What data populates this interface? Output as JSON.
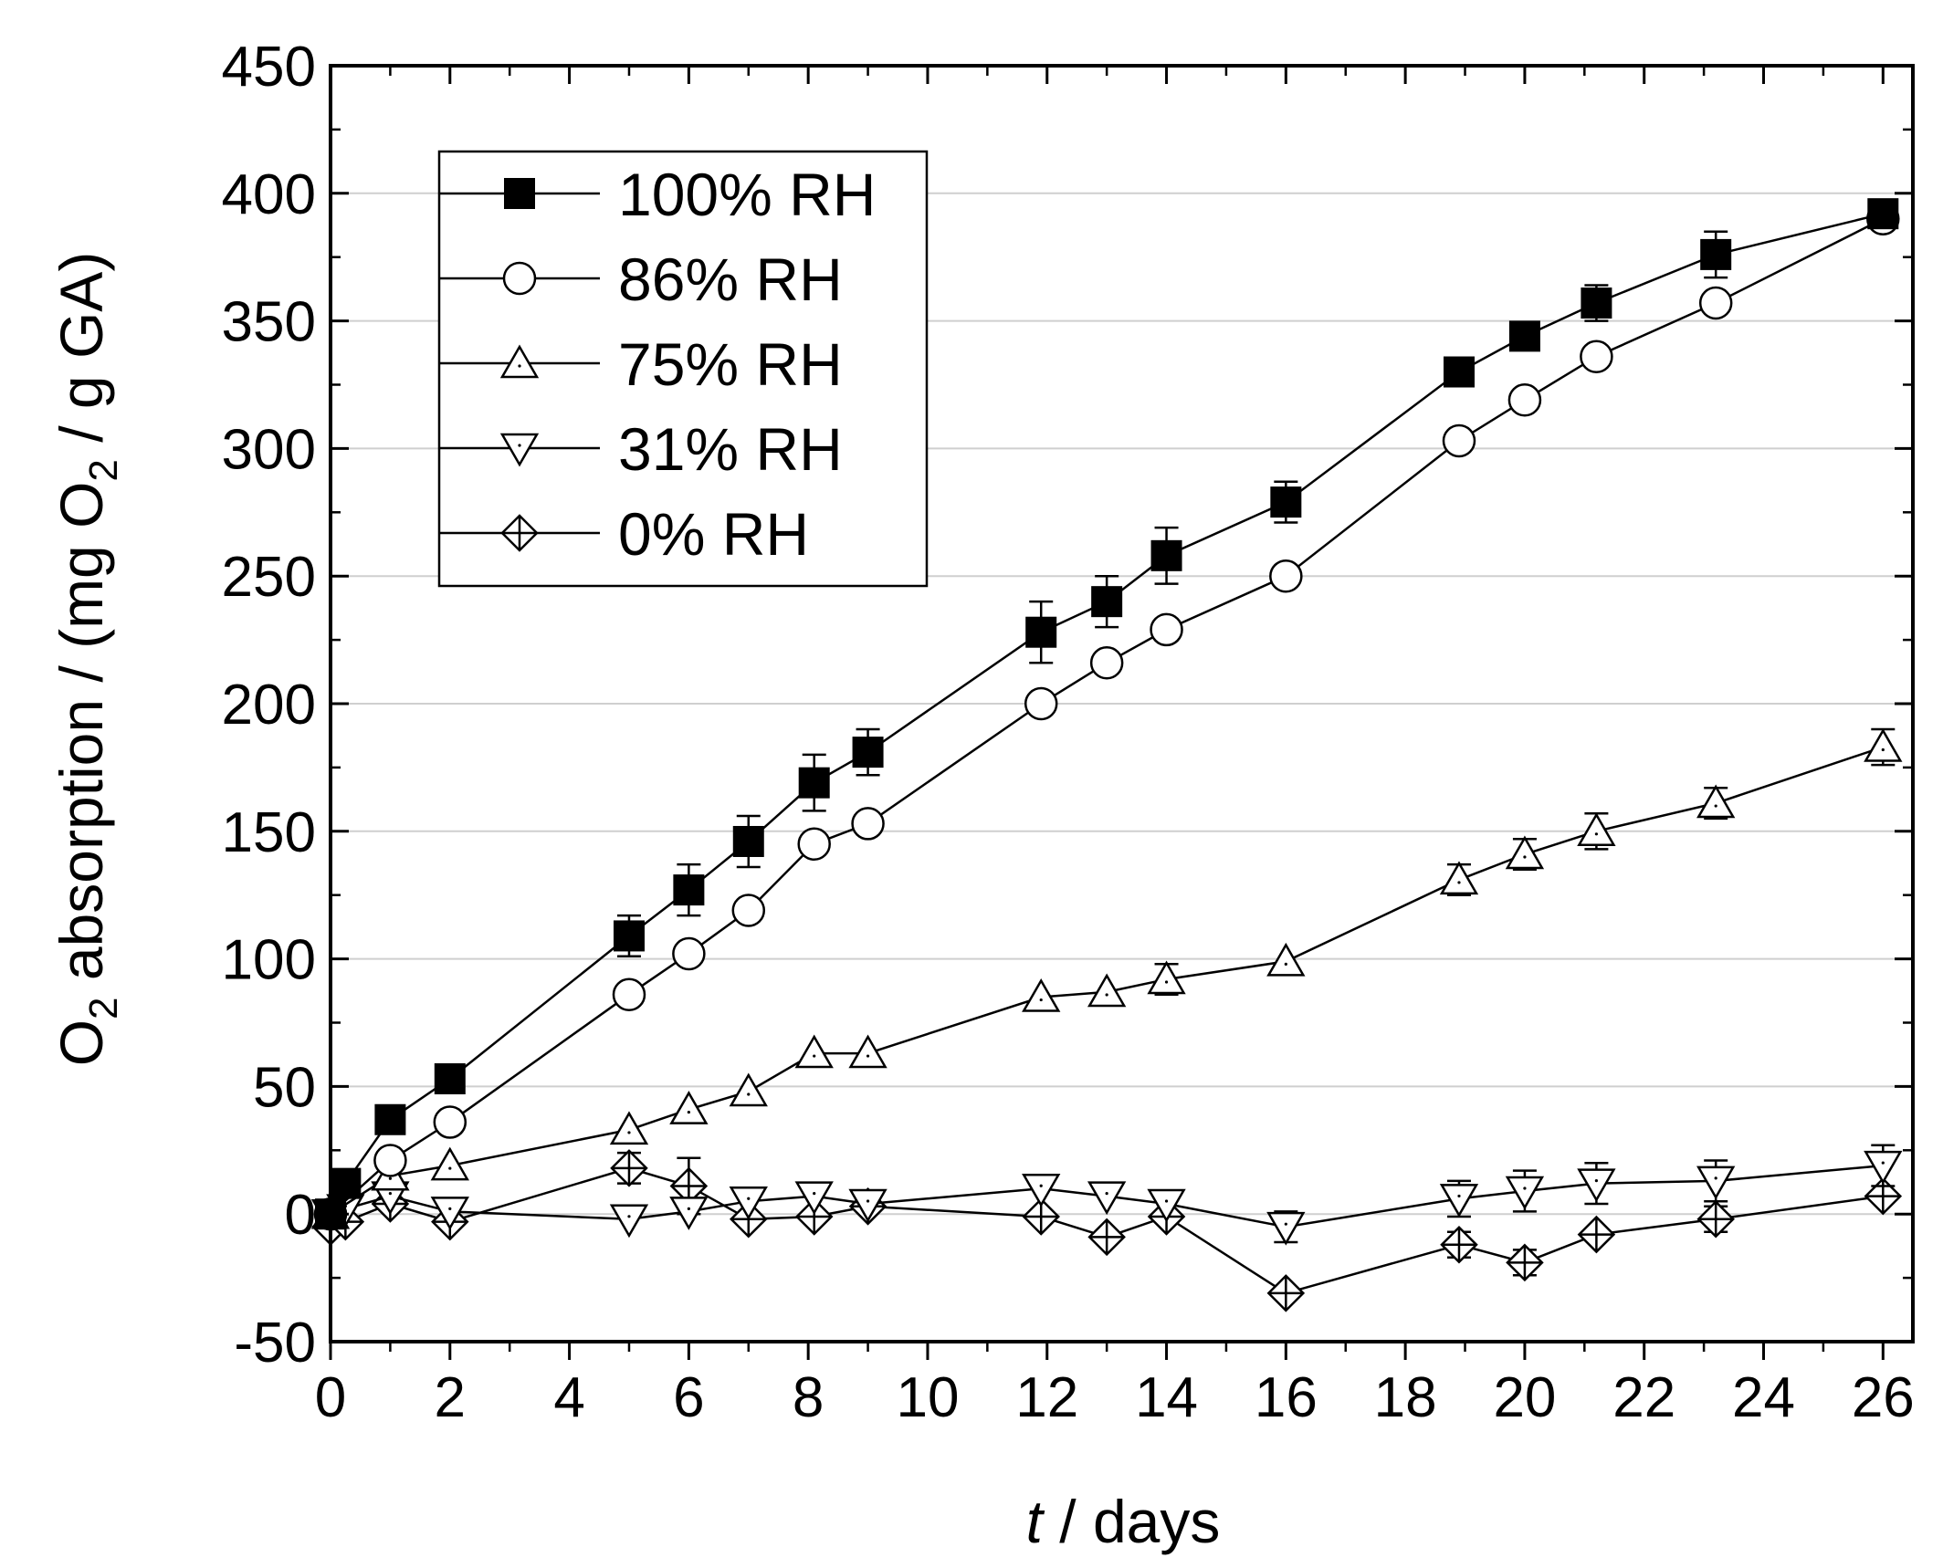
{
  "chart_data": {
    "type": "line",
    "title": "",
    "xlabel_italic": "t",
    "xlabel_rest": " / days",
    "ylabel": {
      "part1": "O",
      "sub1": "2",
      "part2": " absorption / (mg O",
      "sub2": "2",
      "part3": " / g GA)"
    },
    "xlim": [
      0,
      26.5
    ],
    "ylim": [
      -50,
      450
    ],
    "xticks": [
      0,
      2,
      4,
      6,
      8,
      10,
      12,
      14,
      16,
      18,
      20,
      22,
      24,
      26
    ],
    "yticks": [
      -50,
      0,
      50,
      100,
      150,
      200,
      250,
      300,
      350,
      400,
      450
    ],
    "grid": "horizontal",
    "legend_position": "top-left",
    "series": [
      {
        "name": "100% RH",
        "marker": "square-filled",
        "x": [
          0,
          0.25,
          1,
          2,
          5,
          6,
          7,
          8.1,
          9,
          11.9,
          13,
          14,
          16,
          18.9,
          20,
          21.2,
          23.2,
          26
        ],
        "y": [
          0,
          12,
          37,
          53,
          109,
          127,
          146,
          169,
          181,
          228,
          240,
          258,
          279,
          330,
          344,
          357,
          376,
          392
        ],
        "err": [
          0,
          0,
          0,
          0,
          8,
          10,
          10,
          11,
          9,
          12,
          10,
          11,
          8,
          0,
          0,
          7,
          9,
          0
        ]
      },
      {
        "name": "86% RH",
        "marker": "circle-open",
        "x": [
          0,
          1,
          2,
          5,
          6,
          7,
          8.1,
          9,
          11.9,
          13,
          14,
          16,
          18.9,
          20,
          21.2,
          23.2,
          26
        ],
        "y": [
          0,
          21,
          36,
          86,
          102,
          119,
          145,
          153,
          200,
          216,
          229,
          250,
          303,
          319,
          336,
          357,
          390
        ],
        "err": [
          0,
          0,
          0,
          0,
          0,
          0,
          0,
          0,
          0,
          0,
          0,
          0,
          0,
          0,
          0,
          0,
          0
        ]
      },
      {
        "name": "75% RH",
        "marker": "triangle-up-open",
        "x": [
          0,
          1,
          2,
          5,
          6,
          7,
          8.1,
          9,
          11.9,
          13,
          14,
          16,
          18.9,
          20,
          21.2,
          23.2,
          26
        ],
        "y": [
          0,
          15,
          19,
          33,
          41,
          48,
          63,
          63,
          85,
          87,
          92,
          99,
          131,
          141,
          150,
          161,
          183
        ],
        "err": [
          0,
          0,
          0,
          0,
          0,
          0,
          0,
          0,
          0,
          0,
          6,
          0,
          6,
          6,
          7,
          6,
          7
        ]
      },
      {
        "name": "31% RH",
        "marker": "triangle-down-open",
        "x": [
          0,
          0.25,
          1,
          2,
          5,
          6,
          7,
          8.1,
          9,
          11.9,
          13,
          14,
          16,
          18.9,
          20,
          21.2,
          23.2,
          26
        ],
        "y": [
          0,
          2,
          7,
          1,
          -2,
          1,
          5,
          7,
          4,
          10,
          7,
          4,
          -5,
          6,
          9,
          12,
          13,
          19
        ],
        "err": [
          0,
          0,
          0,
          0,
          0,
          0,
          0,
          0,
          0,
          0,
          0,
          0,
          6,
          7,
          8,
          8,
          8,
          8
        ]
      },
      {
        "name": "0% RH",
        "marker": "diamond-cross-open",
        "x": [
          0,
          0.25,
          1,
          2,
          5,
          6,
          7,
          8.1,
          9,
          11.9,
          13,
          14,
          16,
          18.9,
          20,
          21.2,
          23.2,
          26
        ],
        "y": [
          -5,
          -3,
          4,
          -3,
          18,
          11,
          -2,
          -1,
          3,
          -1,
          -9,
          -1,
          -31,
          -12,
          -19,
          -8,
          -2,
          7
        ],
        "err": [
          0,
          0,
          0,
          0,
          6,
          11,
          0,
          0,
          0,
          0,
          0,
          0,
          0,
          5,
          5,
          0,
          5,
          0
        ]
      }
    ]
  }
}
